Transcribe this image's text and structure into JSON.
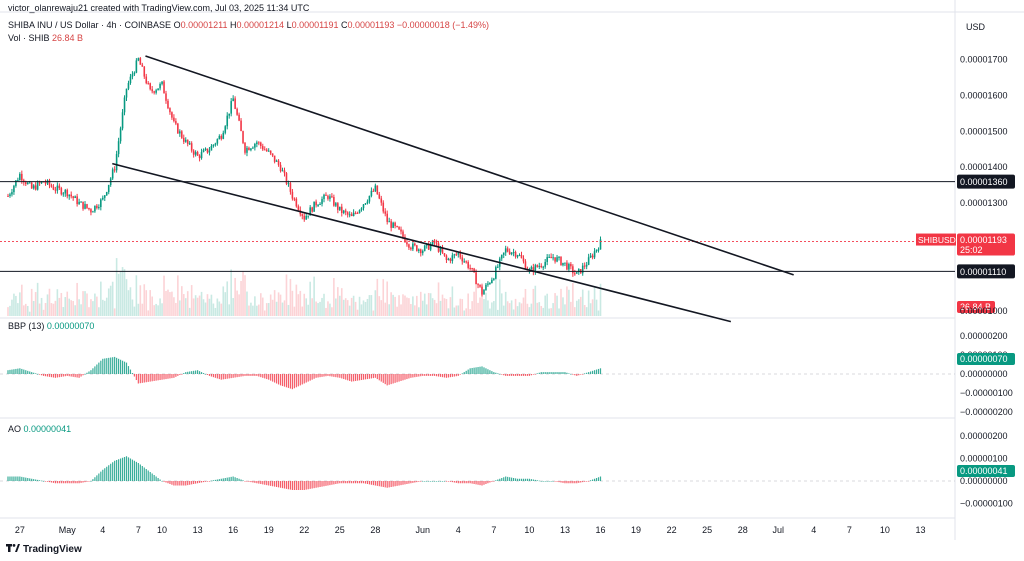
{
  "header": {
    "creator": "victor_olanrewaju21 created with TradingView.com, Jul 03, 2025 11:34 UTC",
    "symbol_name": "SHIBA INU / US Dollar · 4h · COINBASE",
    "ohlc": [
      {
        "label": "O",
        "value": "0.00001211"
      },
      {
        "label": "H",
        "value": "0.00001214"
      },
      {
        "label": "L",
        "value": "0.00001191"
      },
      {
        "label": "C",
        "value": "0.00001193"
      }
    ],
    "change": "−0.00000018 (−1.49%)",
    "vol_label": "Vol · SHIB",
    "vol_value": "26.84 B",
    "currency": "USD"
  },
  "indicators": {
    "bbp_label": "BBP (13)",
    "bbp_value": "0.00000070",
    "ao_label": "AO",
    "ao_value": "0.00000041"
  },
  "footer": {
    "brand": "TradingView"
  },
  "colors": {
    "up": "#089981",
    "down": "#f23645",
    "trendline": "#131722",
    "price_tag": "#f23645"
  },
  "chart_data": {
    "type": "candlestick",
    "symbol": "SHIBUSD",
    "last_price": "0.00001193",
    "countdown": "25:02",
    "volume_tag": "26.84 B",
    "price_axis": {
      "ylim": [
        9.8e-06,
        1.76e-05
      ],
      "ticks": [
        {
          "v": 1.7e-05,
          "label": "0.00001700"
        },
        {
          "v": 1.6e-05,
          "label": "0.00001600"
        },
        {
          "v": 1.5e-05,
          "label": "0.00001500"
        },
        {
          "v": 1.4e-05,
          "label": "0.00001400"
        },
        {
          "v": 1.3e-05,
          "label": "0.00001300"
        },
        {
          "v": 1e-05,
          "label": "0.00001000"
        }
      ]
    },
    "horizontal_levels": [
      {
        "value": 1.36e-05,
        "label": "0.00001360"
      },
      {
        "value": 1.11e-05,
        "label": "0.00001110"
      }
    ],
    "trendlines": [
      {
        "from": {
          "day": 11.6,
          "v": 1.71e-05
        },
        "to": {
          "day": 66.3,
          "v": 1.1e-05
        }
      },
      {
        "from": {
          "day": 8.8,
          "v": 1.41e-05
        },
        "to": {
          "day": 61.0,
          "v": 9.7e-06
        }
      }
    ],
    "x_axis": {
      "start_label": "Apr 26",
      "labels": [
        {
          "day": 1,
          "label": "27"
        },
        {
          "day": 5,
          "label": "May"
        },
        {
          "day": 8,
          "label": "4"
        },
        {
          "day": 11,
          "label": "7"
        },
        {
          "day": 13,
          "label": "10"
        },
        {
          "day": 16,
          "label": "13"
        },
        {
          "day": 19,
          "label": "16"
        },
        {
          "day": 22,
          "label": "19"
        },
        {
          "day": 25,
          "label": "22"
        },
        {
          "day": 28,
          "label": "25"
        },
        {
          "day": 31,
          "label": "28"
        },
        {
          "day": 35,
          "label": "Jun"
        },
        {
          "day": 38,
          "label": "4"
        },
        {
          "day": 41,
          "label": "7"
        },
        {
          "day": 44,
          "label": "10"
        },
        {
          "day": 47,
          "label": "13"
        },
        {
          "day": 50,
          "label": "16"
        },
        {
          "day": 53,
          "label": "19"
        },
        {
          "day": 56,
          "label": "22"
        },
        {
          "day": 59,
          "label": "25"
        },
        {
          "day": 62,
          "label": "28"
        },
        {
          "day": 65,
          "label": "Jul"
        },
        {
          "day": 68,
          "label": "4"
        },
        {
          "day": 71,
          "label": "7"
        },
        {
          "day": 74,
          "label": "10"
        },
        {
          "day": 77,
          "label": "13"
        }
      ]
    },
    "price_path": [
      [
        0,
        1.32e-05
      ],
      [
        1,
        1.38e-05
      ],
      [
        2,
        1.34e-05
      ],
      [
        3,
        1.36e-05
      ],
      [
        4,
        1.34e-05
      ],
      [
        5,
        1.33e-05
      ],
      [
        6,
        1.3e-05
      ],
      [
        7,
        1.28e-05
      ],
      [
        8,
        1.31e-05
      ],
      [
        9,
        1.4e-05
      ],
      [
        10,
        1.62e-05
      ],
      [
        11,
        1.7e-05
      ],
      [
        12,
        1.61e-05
      ],
      [
        13,
        1.63e-05
      ],
      [
        14,
        1.52e-05
      ],
      [
        15,
        1.47e-05
      ],
      [
        16,
        1.43e-05
      ],
      [
        17,
        1.45e-05
      ],
      [
        18,
        1.49e-05
      ],
      [
        19,
        1.59e-05
      ],
      [
        20,
        1.45e-05
      ],
      [
        21,
        1.47e-05
      ],
      [
        22,
        1.44e-05
      ],
      [
        23,
        1.4e-05
      ],
      [
        24,
        1.32e-05
      ],
      [
        25,
        1.26e-05
      ],
      [
        26,
        1.3e-05
      ],
      [
        27,
        1.32e-05
      ],
      [
        28,
        1.28e-05
      ],
      [
        29,
        1.26e-05
      ],
      [
        30,
        1.3e-05
      ],
      [
        31,
        1.34e-05
      ],
      [
        32,
        1.25e-05
      ],
      [
        33,
        1.22e-05
      ],
      [
        34,
        1.18e-05
      ],
      [
        35,
        1.17e-05
      ],
      [
        36,
        1.19e-05
      ],
      [
        37,
        1.14e-05
      ],
      [
        38,
        1.16e-05
      ],
      [
        39,
        1.12e-05
      ],
      [
        40,
        1.05e-05
      ],
      [
        41,
        1.1e-05
      ],
      [
        42,
        1.17e-05
      ],
      [
        43,
        1.16e-05
      ],
      [
        44,
        1.11e-05
      ],
      [
        45,
        1.13e-05
      ],
      [
        46,
        1.15e-05
      ],
      [
        47,
        1.13e-05
      ],
      [
        48,
        1.1e-05
      ],
      [
        49,
        1.14e-05
      ],
      [
        50,
        1.19e-05
      ]
    ],
    "bbp": {
      "values": [
        2,
        3,
        1,
        -1,
        -2,
        -1,
        -2,
        2,
        8,
        9,
        6,
        -5,
        -4,
        -3,
        -2,
        1,
        2,
        -1,
        -3,
        -2,
        -1,
        -1,
        -3,
        -6,
        -8,
        -5,
        -2,
        -1,
        -2,
        -4,
        -3,
        -2,
        -6,
        -4,
        -2,
        -1,
        -1,
        -2,
        -1,
        3,
        4,
        1,
        -1,
        -1,
        -1,
        1,
        1,
        1,
        -1,
        1,
        3
      ],
      "ticks": [
        {
          "v": 200,
          "label": "0.00000200"
        },
        {
          "v": 100,
          "label": "0.00000100"
        },
        {
          "v": 0,
          "label": "0.00000000"
        },
        {
          "v": -100,
          "label": "−0.00000100"
        },
        {
          "v": -200,
          "label": "−0.00000200"
        }
      ],
      "last_tag": "0.00000070"
    },
    "ao": {
      "values": [
        2,
        2,
        1,
        0,
        -1,
        -1,
        -1,
        0,
        5,
        9,
        11,
        8,
        4,
        0,
        -2,
        -2,
        -1,
        0,
        1,
        2,
        0,
        -1,
        -2,
        -3,
        -4,
        -4,
        -3,
        -2,
        -1,
        -1,
        -1,
        -2,
        -3,
        -2,
        -1,
        0,
        0,
        0,
        -1,
        -1,
        -2,
        0,
        2,
        1,
        1,
        0,
        0,
        -1,
        -1,
        0,
        2
      ],
      "ticks": [
        {
          "v": 200,
          "label": "0.00000200"
        },
        {
          "v": 100,
          "label": "0.00000100"
        },
        {
          "v": 0,
          "label": "0.00000000"
        },
        {
          "v": -100,
          "label": "−0.00000100"
        }
      ],
      "last_tag": "0.00000041"
    }
  }
}
